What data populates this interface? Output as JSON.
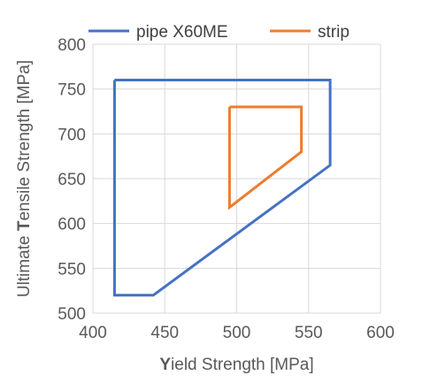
{
  "chart_data": {
    "type": "line",
    "title": "",
    "xlabel_initial": "Y",
    "xlabel_rest": "ield Strength [MPa]",
    "ylabel_prefix": "Ultimate ",
    "ylabel_initial": "T",
    "ylabel_rest": "ensile Strength [MPa]",
    "xlim": [
      400,
      600
    ],
    "ylim": [
      500,
      800
    ],
    "xticks": [
      "400",
      "450",
      "500",
      "550",
      "600"
    ],
    "yticks": [
      "500",
      "550",
      "600",
      "650",
      "700",
      "750",
      "800"
    ],
    "grid": true,
    "legend_position": "top",
    "series": [
      {
        "name": "pipe X60ME",
        "color": "#4472c4",
        "x": [
          415,
          565,
          565,
          442,
          415,
          415
        ],
        "y": [
          760,
          760,
          665,
          520,
          520,
          760
        ]
      },
      {
        "name": "strip",
        "color": "#ed7d31",
        "x": [
          495,
          545,
          545,
          495,
          495
        ],
        "y": [
          730,
          730,
          680,
          618,
          730
        ]
      }
    ]
  }
}
